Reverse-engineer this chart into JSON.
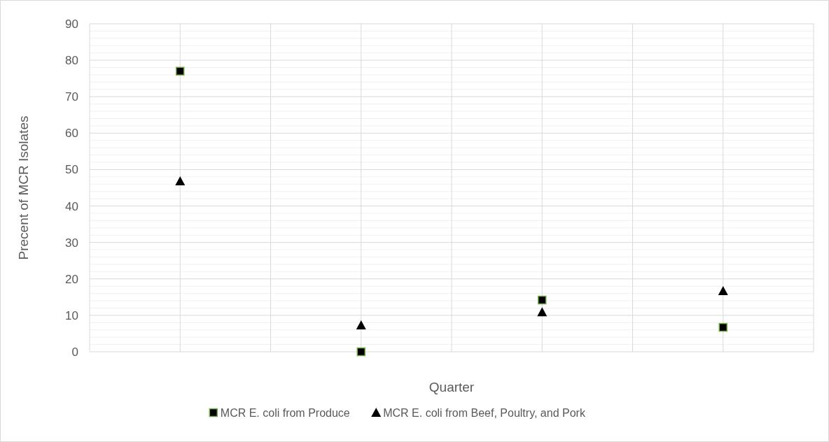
{
  "chart_data": {
    "type": "scatter",
    "xlabel": "Quarter",
    "ylabel": "Precent of MCR Isolates",
    "categories": [
      null,
      null,
      null,
      null
    ],
    "series": [
      {
        "name": "MCR E. coli from Produce",
        "color": "#000000",
        "marker": "square",
        "values": [
          77,
          0,
          14.2,
          6.7
        ]
      },
      {
        "name": "MCR E. coli from Beef, Poultry, and Pork",
        "color": "#000000",
        "marker": "triangle",
        "values": [
          46.8,
          7.3,
          10.9,
          16.7
        ]
      }
    ],
    "ylim": [
      0,
      90
    ],
    "yticks": [
      0,
      10,
      20,
      30,
      40,
      50,
      60,
      70,
      80,
      90
    ],
    "grid": true,
    "legend": "bottom",
    "tick_labels": "y"
  }
}
